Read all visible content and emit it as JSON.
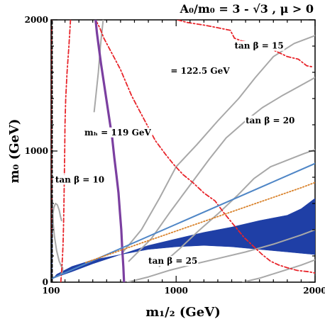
{
  "chart_data": {
    "type": "line",
    "title": "A₀/m₀ = 3 - √3 ,  μ > 0",
    "xlabel": "m₁/₂ (GeV)",
    "ylabel": "m₀ (GeV)",
    "xlim": [
      100,
      2000
    ],
    "ylim": [
      0,
      2000
    ],
    "x_ticks": [
      "100",
      "1000",
      "2000"
    ],
    "y_ticks": [
      "0",
      "1000",
      "2000"
    ],
    "grid": false,
    "colors": {
      "tan_beta": "#a8a8a8",
      "higgs_mass": "#e8242a",
      "higgs_119": "#7b3fa0",
      "relic_density": "#1f3fa6",
      "blue_line": "#4f86c6",
      "orange_dotted": "#d9822b",
      "black_dashed": "#000000"
    },
    "annotations": [
      {
        "text": "tan β = 15",
        "x": 1420,
        "y": 1780
      },
      {
        "text": "= 122.5 GeV",
        "x": 960,
        "y": 1590
      },
      {
        "text": "tan β = 20",
        "x": 1500,
        "y": 1210
      },
      {
        "text": "mₕ = 119 GeV",
        "x": 340,
        "y": 1120
      },
      {
        "text": "tan β = 10",
        "x": 130,
        "y": 760
      },
      {
        "text": "tan β = 25",
        "x": 800,
        "y": 140
      }
    ],
    "series": [
      {
        "id": "tb10",
        "color": "tan_beta",
        "style": "solid",
        "x": [
          175,
          168,
          158,
          145,
          132,
          120,
          113,
          116,
          124,
          140,
          158,
          174,
          183,
          183,
          178,
          165,
          150,
          135,
          120,
          110,
          104,
          100
        ],
        "y": [
          470,
          500,
          550,
          590,
          600,
          570,
          520,
          440,
          350,
          240,
          160,
          120,
          110,
          90,
          70,
          55,
          45,
          40,
          38,
          36,
          35,
          34
        ]
      },
      {
        "id": "tb15",
        "color": "tan_beta",
        "style": "solid",
        "x": [
          610,
          750,
          880,
          1000,
          1150,
          1300,
          1450,
          1570,
          1700,
          1850,
          2000
        ],
        "y": [
          220,
          400,
          640,
          880,
          1050,
          1230,
          1400,
          1560,
          1720,
          1820,
          1880
        ]
      },
      {
        "id": "tb15b",
        "color": "tan_beta",
        "style": "solid",
        "x": [
          660,
          820,
          960,
          1100,
          1240,
          1360,
          1500,
          1620,
          1760,
          1880,
          2000
        ],
        "y": [
          160,
          330,
          540,
          740,
          940,
          1100,
          1230,
          1330,
          1420,
          1490,
          1560
        ]
      },
      {
        "id": "tb20",
        "color": "tan_beta",
        "style": "solid",
        "x": [
          880,
          1020,
          1160,
          1300,
          1440,
          1560,
          1680,
          1800,
          1920,
          2000
        ],
        "y": [
          120,
          250,
          390,
          520,
          660,
          790,
          880,
          930,
          980,
          1010
        ]
      },
      {
        "id": "tb25",
        "color": "tan_beta",
        "style": "solid",
        "x": [
          650,
          800,
          950,
          1100,
          1300,
          1500,
          1700,
          1900,
          2000
        ],
        "y": [
          0,
          40,
          90,
          130,
          180,
          230,
          290,
          360,
          400
        ]
      },
      {
        "id": "tb_low",
        "color": "tan_beta",
        "style": "solid",
        "x": [
          1480,
          1600,
          1750,
          1900,
          2000
        ],
        "y": [
          0,
          30,
          80,
          130,
          170
        ]
      },
      {
        "id": "tb_left",
        "color": "tan_beta",
        "style": "solid",
        "x": [
          475,
          455,
          440,
          420,
          410
        ],
        "y": [
          2000,
          1800,
          1600,
          1400,
          1300
        ]
      },
      {
        "id": "mh122_5",
        "color": "higgs_mass",
        "style": "dashdot",
        "x": [
          1010,
          1080,
          1200,
          1300,
          1390,
          1420,
          1470,
          1530,
          1580,
          1620,
          1700,
          1760,
          1800,
          1880,
          1940,
          1990
        ],
        "y": [
          2000,
          1980,
          1960,
          1940,
          1920,
          1860,
          1840,
          1830,
          1820,
          1780,
          1770,
          1740,
          1720,
          1700,
          1650,
          1640
        ]
      },
      {
        "id": "mh_mid",
        "color": "higgs_mass",
        "style": "dashdot",
        "x": [
          420,
          450,
          480,
          520,
          560,
          600,
          640,
          680,
          730,
          790,
          850,
          920,
          980,
          1050,
          1120,
          1200,
          1280,
          1350,
          1420,
          1490,
          1560,
          1620,
          1680,
          1740,
          1800,
          1870,
          1950,
          2000
        ],
        "y": [
          2000,
          1940,
          1860,
          1780,
          1700,
          1620,
          1520,
          1420,
          1320,
          1200,
          1080,
          980,
          900,
          820,
          760,
          680,
          620,
          520,
          430,
          340,
          270,
          210,
          160,
          130,
          110,
          90,
          80,
          70
        ]
      },
      {
        "id": "mh_left",
        "color": "higgs_mass",
        "style": "dashdot",
        "x": [
          240,
          228,
          215,
          205,
          200,
          198,
          196,
          194,
          192,
          190,
          188,
          186,
          182,
          178,
          174,
          170
        ],
        "y": [
          2000,
          1800,
          1600,
          1400,
          1200,
          1000,
          850,
          700,
          560,
          450,
          360,
          280,
          200,
          120,
          60,
          0
        ]
      },
      {
        "id": "mh_far",
        "color": "higgs_mass",
        "style": "dashdot",
        "x": [
          104,
          103,
          102,
          102,
          102,
          103,
          105,
          106,
          104,
          103
        ],
        "y": [
          2000,
          1800,
          1500,
          1200,
          1000,
          850,
          700,
          650,
          500,
          350
        ]
      },
      {
        "id": "mh119",
        "color": "higgs_119",
        "style": "solid",
        "x": [
          420,
          430,
          445,
          460,
          480,
          500,
          520,
          540,
          555,
          570,
          585,
          595,
          605,
          612,
          620,
          625
        ],
        "y": [
          2000,
          1900,
          1780,
          1660,
          1520,
          1380,
          1240,
          1100,
          950,
          820,
          680,
          540,
          400,
          260,
          120,
          0
        ]
      },
      {
        "id": "blue_line",
        "color": "blue_line",
        "style": "solid",
        "x": [
          100,
          2000
        ],
        "y": [
          25,
          905
        ]
      },
      {
        "id": "orange_dotted",
        "color": "orange_dotted",
        "style": "dotted",
        "x": [
          350,
          700,
          1000,
          1300,
          1600,
          1900,
          2000
        ],
        "y": [
          150,
          280,
          390,
          500,
          610,
          720,
          760
        ]
      },
      {
        "id": "black_dashed",
        "color": "black_dashed",
        "style": "dashed",
        "x": [
          107,
          107
        ],
        "y": [
          0,
          2000
        ]
      }
    ],
    "regions": [
      {
        "id": "relic_band",
        "color": "relic_density",
        "x": [
          115,
          250,
          400,
          600,
          800,
          1000,
          1200,
          1400,
          1600,
          1800,
          1900,
          2000,
          2000,
          1900,
          1800,
          1600,
          1400,
          1200,
          1000,
          800,
          600,
          400,
          250,
          140,
          115
        ],
        "y": [
          30,
          80,
          140,
          210,
          280,
          330,
          380,
          420,
          470,
          510,
          560,
          640,
          210,
          220,
          230,
          250,
          270,
          280,
          270,
          250,
          210,
          170,
          120,
          60,
          30
        ]
      },
      {
        "id": "relic_strip",
        "color": "relic_density",
        "x": [
          103,
          106,
          108,
          110,
          109,
          106,
          103
        ],
        "y": [
          20,
          20,
          200,
          500,
          650,
          400,
          20
        ]
      }
    ]
  }
}
